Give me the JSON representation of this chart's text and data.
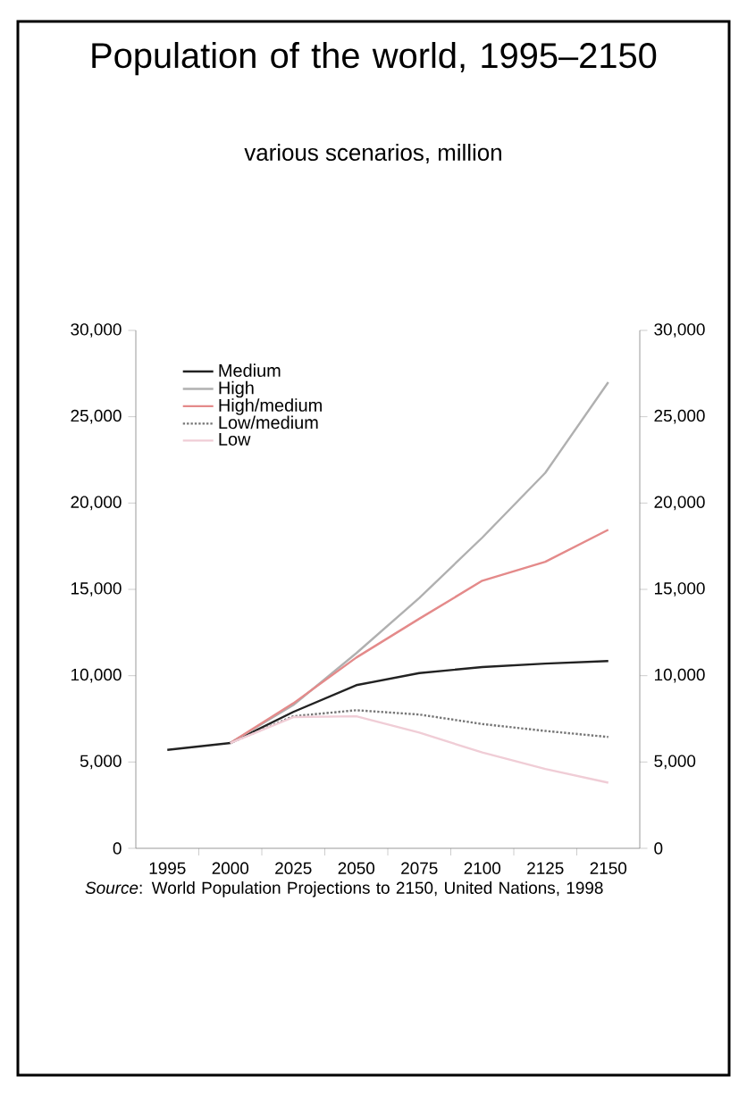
{
  "chart_data": {
    "type": "line",
    "title": "Population of the world, 1995–2150",
    "subtitle": "various scenarios, million",
    "annotations": [
      "*Source*: World Population Projections to 2150, United Nations, 1998"
    ],
    "categories": [
      "1995",
      "2000",
      "2025",
      "2050",
      "2075",
      "2100",
      "2125",
      "2150"
    ],
    "series": [
      {
        "name": "Medium",
        "color": "#222222",
        "values": [
          5700,
          6100,
          7900,
          9450,
          10150,
          10500,
          10700,
          10850
        ]
      },
      {
        "name": "High",
        "color": "#b0b0b0",
        "values": [
          null,
          6100,
          8300,
          11300,
          14500,
          18000,
          21750,
          27000
        ]
      },
      {
        "name": "High/medium",
        "color": "#e48a8a",
        "values": [
          null,
          6100,
          8400,
          11050,
          13300,
          15500,
          16600,
          18450
        ]
      },
      {
        "name": "Low/medium",
        "color": "#777777",
        "line_style": "dotted",
        "values": [
          null,
          6100,
          7650,
          8000,
          7750,
          7200,
          6800,
          6450
        ]
      },
      {
        "name": "Low",
        "color": "#f0cdd6",
        "values": [
          null,
          6100,
          7600,
          7650,
          6700,
          5550,
          4600,
          3800
        ]
      }
    ],
    "ylim": [
      0,
      30000
    ],
    "yticks": [
      {
        "value": 0,
        "label": "0"
      },
      {
        "value": 5000,
        "label": "5,000"
      },
      {
        "value": 10000,
        "label": "10,000"
      },
      {
        "value": 15000,
        "label": "15,000"
      },
      {
        "value": 20000,
        "label": "20,000"
      },
      {
        "value": 25000,
        "label": "25,000"
      },
      {
        "value": 30000,
        "label": "30,000"
      }
    ],
    "y2lim": [
      0,
      30000
    ],
    "y2ticks": [
      {
        "value": 0,
        "label": "0"
      },
      {
        "value": 5000,
        "label": "5,000"
      },
      {
        "value": 10000,
        "label": "10,000"
      },
      {
        "value": 15000,
        "label": "15,000"
      },
      {
        "value": 20000,
        "label": "20,000"
      },
      {
        "value": 25000,
        "label": "25,000"
      },
      {
        "value": 30000,
        "label": "30,000"
      }
    ],
    "legend": "top left",
    "grid": false,
    "marker": "none",
    "line_style": "solid"
  }
}
